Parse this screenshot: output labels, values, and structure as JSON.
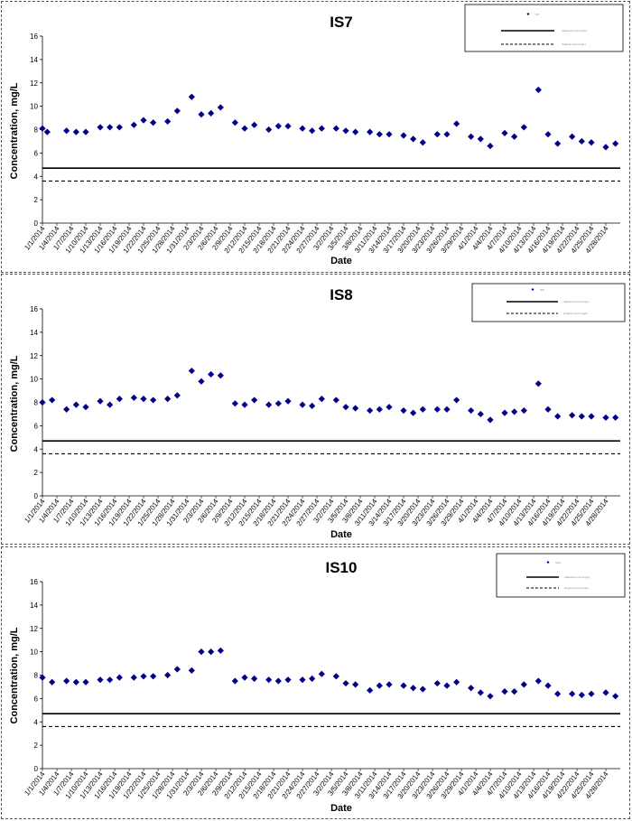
{
  "chart_data": [
    {
      "type": "scatter",
      "title": "IS7",
      "xlabel": "Date",
      "ylabel": "Concentration, mg/L",
      "ylim": [
        0,
        16
      ],
      "yticks": [
        0,
        2,
        4,
        6,
        8,
        10,
        12,
        14,
        16
      ],
      "xlim": [
        "2014-01-01",
        "2014-05-01"
      ],
      "xticks": [
        "1/1/2014",
        "1/4/2014",
        "1/7/2014",
        "1/10/2014",
        "1/13/2014",
        "1/16/2014",
        "1/19/2014",
        "1/22/2014",
        "1/25/2014",
        "1/28/2014",
        "1/31/2014",
        "2/3/2014",
        "2/6/2014",
        "2/9/2014",
        "2/12/2014",
        "2/15/2014",
        "2/18/2014",
        "2/21/2014",
        "2/24/2014",
        "2/27/2014",
        "3/2/2014",
        "3/5/2014",
        "3/8/2014",
        "3/11/2014",
        "3/14/2014",
        "3/17/2014",
        "3/20/2014",
        "3/23/2014",
        "3/26/2014",
        "3/29/2014",
        "4/1/2014",
        "4/4/2014",
        "4/7/2014",
        "4/10/2014",
        "4/13/2014",
        "4/16/2014",
        "4/19/2014",
        "4/22/2014",
        "4/25/2014",
        "4/28/2014"
      ],
      "grid": false,
      "legend_position": "top-right",
      "legend": [
        {
          "label": "IS7",
          "marker": "diamond"
        },
        {
          "label": "Adjusted Limit (mg/L)",
          "line": "solid"
        },
        {
          "label": "Original Limit (mg/L)",
          "line": "dashed"
        }
      ],
      "series": [
        {
          "name": "IS7",
          "color": "#00008b",
          "points": [
            {
              "x": "2014-01-01",
              "y": 8.1
            },
            {
              "x": "2014-01-02",
              "y": 7.8
            },
            {
              "x": "2014-01-06",
              "y": 7.9
            },
            {
              "x": "2014-01-08",
              "y": 7.8
            },
            {
              "x": "2014-01-10",
              "y": 7.8
            },
            {
              "x": "2014-01-13",
              "y": 8.2
            },
            {
              "x": "2014-01-15",
              "y": 8.2
            },
            {
              "x": "2014-01-17",
              "y": 8.2
            },
            {
              "x": "2014-01-20",
              "y": 8.4
            },
            {
              "x": "2014-01-22",
              "y": 8.8
            },
            {
              "x": "2014-01-24",
              "y": 8.6
            },
            {
              "x": "2014-01-27",
              "y": 8.7
            },
            {
              "x": "2014-01-29",
              "y": 9.6
            },
            {
              "x": "2014-02-01",
              "y": 10.8
            },
            {
              "x": "2014-02-03",
              "y": 9.3
            },
            {
              "x": "2014-02-05",
              "y": 9.4
            },
            {
              "x": "2014-02-07",
              "y": 9.9
            },
            {
              "x": "2014-02-10",
              "y": 8.6
            },
            {
              "x": "2014-02-12",
              "y": 8.1
            },
            {
              "x": "2014-02-14",
              "y": 8.4
            },
            {
              "x": "2014-02-17",
              "y": 8.0
            },
            {
              "x": "2014-02-19",
              "y": 8.3
            },
            {
              "x": "2014-02-21",
              "y": 8.3
            },
            {
              "x": "2014-02-24",
              "y": 8.1
            },
            {
              "x": "2014-02-26",
              "y": 7.9
            },
            {
              "x": "2014-02-28",
              "y": 8.1
            },
            {
              "x": "2014-03-03",
              "y": 8.1
            },
            {
              "x": "2014-03-05",
              "y": 7.9
            },
            {
              "x": "2014-03-07",
              "y": 7.8
            },
            {
              "x": "2014-03-10",
              "y": 7.8
            },
            {
              "x": "2014-03-12",
              "y": 7.6
            },
            {
              "x": "2014-03-14",
              "y": 7.6
            },
            {
              "x": "2014-03-17",
              "y": 7.5
            },
            {
              "x": "2014-03-19",
              "y": 7.2
            },
            {
              "x": "2014-03-21",
              "y": 6.9
            },
            {
              "x": "2014-03-24",
              "y": 7.6
            },
            {
              "x": "2014-03-26",
              "y": 7.6
            },
            {
              "x": "2014-03-28",
              "y": 8.5
            },
            {
              "x": "2014-03-31",
              "y": 7.4
            },
            {
              "x": "2014-04-02",
              "y": 7.2
            },
            {
              "x": "2014-04-04",
              "y": 6.6
            },
            {
              "x": "2014-04-07",
              "y": 7.7
            },
            {
              "x": "2014-04-09",
              "y": 7.4
            },
            {
              "x": "2014-04-11",
              "y": 8.2
            },
            {
              "x": "2014-04-14",
              "y": 11.4
            },
            {
              "x": "2014-04-16",
              "y": 7.6
            },
            {
              "x": "2014-04-18",
              "y": 6.8
            },
            {
              "x": "2014-04-21",
              "y": 7.4
            },
            {
              "x": "2014-04-23",
              "y": 7.0
            },
            {
              "x": "2014-04-25",
              "y": 6.9
            },
            {
              "x": "2014-04-28",
              "y": 6.5
            },
            {
              "x": "2014-04-30",
              "y": 6.8
            }
          ]
        }
      ],
      "hlines": [
        {
          "name": "Adjusted Limit (mg/L)",
          "y": 4.7,
          "style": "solid"
        },
        {
          "name": "Original Limit (mg/L)",
          "y": 3.6,
          "style": "dashed"
        }
      ]
    },
    {
      "type": "scatter",
      "title": "IS8",
      "xlabel": "Date",
      "ylabel": "Concentration, mg/L",
      "ylim": [
        0,
        16
      ],
      "yticks": [
        0,
        2,
        4,
        6,
        8,
        10,
        12,
        14,
        16
      ],
      "xlim": [
        "2014-01-01",
        "2014-05-01"
      ],
      "xticks": [
        "1/1/2014",
        "1/4/2014",
        "1/7/2014",
        "1/10/2014",
        "1/13/2014",
        "1/16/2014",
        "1/19/2014",
        "1/22/2014",
        "1/25/2014",
        "1/28/2014",
        "1/31/2014",
        "2/3/2014",
        "2/6/2014",
        "2/9/2014",
        "2/12/2014",
        "2/15/2014",
        "2/18/2014",
        "2/21/2014",
        "2/24/2014",
        "2/27/2014",
        "3/2/2014",
        "3/5/2014",
        "3/8/2014",
        "3/11/2014",
        "3/14/2014",
        "3/17/2014",
        "3/20/2014",
        "3/23/2014",
        "3/26/2014",
        "3/29/2014",
        "4/1/2014",
        "4/4/2014",
        "4/7/2014",
        "4/10/2014",
        "4/13/2014",
        "4/16/2014",
        "4/19/2014",
        "4/22/2014",
        "4/25/2014",
        "4/28/2014"
      ],
      "grid": false,
      "legend_position": "top-right",
      "legend": [
        {
          "label": "IS8",
          "marker": "diamond"
        },
        {
          "label": "Adjusted Limit (mg/L)",
          "line": "solid"
        },
        {
          "label": "Original Limit (mg/L)",
          "line": "dashed"
        }
      ],
      "series": [
        {
          "name": "IS8",
          "color": "#00008b",
          "points": [
            {
              "x": "2014-01-01",
              "y": 8.0
            },
            {
              "x": "2014-01-03",
              "y": 8.2
            },
            {
              "x": "2014-01-06",
              "y": 7.4
            },
            {
              "x": "2014-01-08",
              "y": 7.8
            },
            {
              "x": "2014-01-10",
              "y": 7.6
            },
            {
              "x": "2014-01-13",
              "y": 8.1
            },
            {
              "x": "2014-01-15",
              "y": 7.8
            },
            {
              "x": "2014-01-17",
              "y": 8.3
            },
            {
              "x": "2014-01-20",
              "y": 8.4
            },
            {
              "x": "2014-01-22",
              "y": 8.3
            },
            {
              "x": "2014-01-24",
              "y": 8.2
            },
            {
              "x": "2014-01-27",
              "y": 8.3
            },
            {
              "x": "2014-01-29",
              "y": 8.6
            },
            {
              "x": "2014-02-01",
              "y": 10.7
            },
            {
              "x": "2014-02-03",
              "y": 9.8
            },
            {
              "x": "2014-02-05",
              "y": 10.4
            },
            {
              "x": "2014-02-07",
              "y": 10.3
            },
            {
              "x": "2014-02-10",
              "y": 7.9
            },
            {
              "x": "2014-02-12",
              "y": 7.8
            },
            {
              "x": "2014-02-14",
              "y": 8.2
            },
            {
              "x": "2014-02-17",
              "y": 7.8
            },
            {
              "x": "2014-02-19",
              "y": 7.9
            },
            {
              "x": "2014-02-21",
              "y": 8.1
            },
            {
              "x": "2014-02-24",
              "y": 7.8
            },
            {
              "x": "2014-02-26",
              "y": 7.7
            },
            {
              "x": "2014-02-28",
              "y": 8.3
            },
            {
              "x": "2014-03-03",
              "y": 8.2
            },
            {
              "x": "2014-03-05",
              "y": 7.6
            },
            {
              "x": "2014-03-07",
              "y": 7.5
            },
            {
              "x": "2014-03-10",
              "y": 7.3
            },
            {
              "x": "2014-03-12",
              "y": 7.4
            },
            {
              "x": "2014-03-14",
              "y": 7.6
            },
            {
              "x": "2014-03-17",
              "y": 7.3
            },
            {
              "x": "2014-03-19",
              "y": 7.1
            },
            {
              "x": "2014-03-21",
              "y": 7.4
            },
            {
              "x": "2014-03-24",
              "y": 7.4
            },
            {
              "x": "2014-03-26",
              "y": 7.4
            },
            {
              "x": "2014-03-28",
              "y": 8.2
            },
            {
              "x": "2014-03-31",
              "y": 7.3
            },
            {
              "x": "2014-04-02",
              "y": 7.0
            },
            {
              "x": "2014-04-04",
              "y": 6.5
            },
            {
              "x": "2014-04-07",
              "y": 7.1
            },
            {
              "x": "2014-04-09",
              "y": 7.2
            },
            {
              "x": "2014-04-11",
              "y": 7.3
            },
            {
              "x": "2014-04-14",
              "y": 9.6
            },
            {
              "x": "2014-04-16",
              "y": 7.4
            },
            {
              "x": "2014-04-18",
              "y": 6.8
            },
            {
              "x": "2014-04-21",
              "y": 6.9
            },
            {
              "x": "2014-04-23",
              "y": 6.8
            },
            {
              "x": "2014-04-25",
              "y": 6.8
            },
            {
              "x": "2014-04-28",
              "y": 6.7
            },
            {
              "x": "2014-04-30",
              "y": 6.7
            }
          ]
        }
      ],
      "hlines": [
        {
          "name": "Adjusted Limit (mg/L)",
          "y": 4.7,
          "style": "solid"
        },
        {
          "name": "Original Limit (mg/L)",
          "y": 3.6,
          "style": "dashed"
        }
      ]
    },
    {
      "type": "scatter",
      "title": "IS10",
      "xlabel": "Date",
      "ylabel": "Concentration, mg/L",
      "ylim": [
        0,
        16
      ],
      "yticks": [
        0,
        2,
        4,
        6,
        8,
        10,
        12,
        14,
        16
      ],
      "xlim": [
        "2014-01-01",
        "2014-05-01"
      ],
      "xticks": [
        "1/1/2014",
        "1/4/2014",
        "1/7/2014",
        "1/10/2014",
        "1/13/2014",
        "1/16/2014",
        "1/19/2014",
        "1/22/2014",
        "1/25/2014",
        "1/28/2014",
        "1/31/2014",
        "2/3/2014",
        "2/6/2014",
        "2/9/2014",
        "2/12/2014",
        "2/15/2014",
        "2/18/2014",
        "2/21/2014",
        "2/24/2014",
        "2/27/2014",
        "3/2/2014",
        "3/5/2014",
        "3/8/2014",
        "3/11/2014",
        "3/14/2014",
        "3/17/2014",
        "3/20/2014",
        "3/23/2014",
        "3/26/2014",
        "3/29/2014",
        "4/1/2014",
        "4/4/2014",
        "4/7/2014",
        "4/10/2014",
        "4/13/2014",
        "4/16/2014",
        "4/19/2014",
        "4/22/2014",
        "4/25/2014",
        "4/28/2014"
      ],
      "grid": false,
      "legend_position": "top-right",
      "legend": [
        {
          "label": "IS10",
          "marker": "diamond"
        },
        {
          "label": "Adjusted Limit (mg/L)",
          "line": "solid"
        },
        {
          "label": "Original Limit (mg/L)",
          "line": "dashed"
        }
      ],
      "series": [
        {
          "name": "IS10",
          "color": "#00008b",
          "points": [
            {
              "x": "2014-01-01",
              "y": 7.8
            },
            {
              "x": "2014-01-03",
              "y": 7.4
            },
            {
              "x": "2014-01-06",
              "y": 7.5
            },
            {
              "x": "2014-01-08",
              "y": 7.4
            },
            {
              "x": "2014-01-10",
              "y": 7.4
            },
            {
              "x": "2014-01-13",
              "y": 7.6
            },
            {
              "x": "2014-01-15",
              "y": 7.6
            },
            {
              "x": "2014-01-17",
              "y": 7.8
            },
            {
              "x": "2014-01-20",
              "y": 7.8
            },
            {
              "x": "2014-01-22",
              "y": 7.9
            },
            {
              "x": "2014-01-24",
              "y": 7.9
            },
            {
              "x": "2014-01-27",
              "y": 8.0
            },
            {
              "x": "2014-01-29",
              "y": 8.5
            },
            {
              "x": "2014-02-01",
              "y": 8.4
            },
            {
              "x": "2014-02-03",
              "y": 10.0
            },
            {
              "x": "2014-02-05",
              "y": 10.0
            },
            {
              "x": "2014-02-07",
              "y": 10.1
            },
            {
              "x": "2014-02-10",
              "y": 7.5
            },
            {
              "x": "2014-02-12",
              "y": 7.8
            },
            {
              "x": "2014-02-14",
              "y": 7.7
            },
            {
              "x": "2014-02-17",
              "y": 7.6
            },
            {
              "x": "2014-02-19",
              "y": 7.5
            },
            {
              "x": "2014-02-21",
              "y": 7.6
            },
            {
              "x": "2014-02-24",
              "y": 7.6
            },
            {
              "x": "2014-02-26",
              "y": 7.7
            },
            {
              "x": "2014-02-28",
              "y": 8.1
            },
            {
              "x": "2014-03-03",
              "y": 7.9
            },
            {
              "x": "2014-03-05",
              "y": 7.3
            },
            {
              "x": "2014-03-07",
              "y": 7.2
            },
            {
              "x": "2014-03-10",
              "y": 6.7
            },
            {
              "x": "2014-03-12",
              "y": 7.1
            },
            {
              "x": "2014-03-14",
              "y": 7.2
            },
            {
              "x": "2014-03-17",
              "y": 7.1
            },
            {
              "x": "2014-03-19",
              "y": 6.9
            },
            {
              "x": "2014-03-21",
              "y": 6.8
            },
            {
              "x": "2014-03-24",
              "y": 7.3
            },
            {
              "x": "2014-03-26",
              "y": 7.1
            },
            {
              "x": "2014-03-28",
              "y": 7.4
            },
            {
              "x": "2014-03-31",
              "y": 6.9
            },
            {
              "x": "2014-04-02",
              "y": 6.5
            },
            {
              "x": "2014-04-04",
              "y": 6.2
            },
            {
              "x": "2014-04-07",
              "y": 6.6
            },
            {
              "x": "2014-04-09",
              "y": 6.6
            },
            {
              "x": "2014-04-11",
              "y": 7.2
            },
            {
              "x": "2014-04-14",
              "y": 7.5
            },
            {
              "x": "2014-04-16",
              "y": 7.1
            },
            {
              "x": "2014-04-18",
              "y": 6.4
            },
            {
              "x": "2014-04-21",
              "y": 6.4
            },
            {
              "x": "2014-04-23",
              "y": 6.3
            },
            {
              "x": "2014-04-25",
              "y": 6.4
            },
            {
              "x": "2014-04-28",
              "y": 6.5
            },
            {
              "x": "2014-04-30",
              "y": 6.2
            }
          ]
        }
      ],
      "hlines": [
        {
          "name": "Adjusted Limit (mg/L)",
          "y": 4.7,
          "style": "solid"
        },
        {
          "name": "Original Limit (mg/L)",
          "y": 3.6,
          "style": "dashed"
        }
      ]
    }
  ]
}
